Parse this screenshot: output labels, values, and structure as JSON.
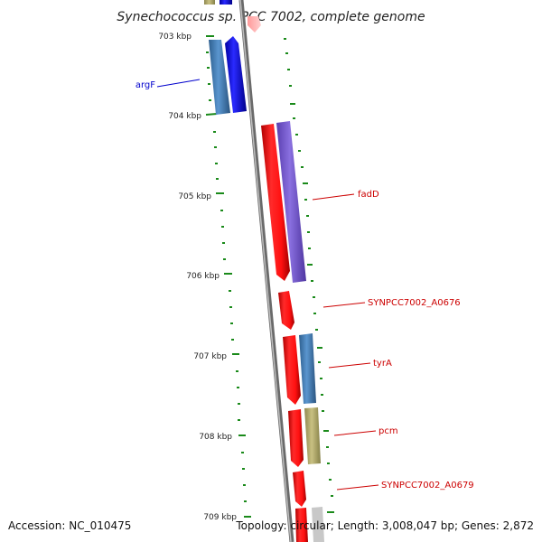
{
  "title": "Synechococcus sp. PCC 7002, complete genome",
  "footer": {
    "accession": "Accession: NC_010475",
    "topology": "Topology: circular; Length: 3,008,047 bp; Genes: 2,872"
  },
  "axis": {
    "unit": "kbp",
    "ticks": [
      {
        "label": "703 kbp",
        "kbp": 703
      },
      {
        "label": "704 kbp",
        "kbp": 704
      },
      {
        "label": "705 kbp",
        "kbp": 705
      },
      {
        "label": "706 kbp",
        "kbp": 706
      },
      {
        "label": "707 kbp",
        "kbp": 707
      },
      {
        "label": "708 kbp",
        "kbp": 708
      },
      {
        "label": "709 kbp",
        "kbp": 709
      }
    ]
  },
  "colors": {
    "cds_red": "#ff1a1a",
    "blue_gene": "#1a1aff",
    "steel_blue_gene": "#4a86c0",
    "purple_gene": "#7b5fd0",
    "khaki_gene": "#b8b070",
    "backbone": "#888888",
    "tick": "#1a8a1a",
    "label_blue": "#0000cc",
    "label_red": "#cc0000"
  },
  "features": [
    {
      "name": "argF",
      "label_color": "#0000cc"
    },
    {
      "name": "fadD",
      "label_color": "#cc0000"
    },
    {
      "name": "SYNPCC7002_A0676",
      "label_color": "#cc0000"
    },
    {
      "name": "tyrA",
      "label_color": "#cc0000"
    },
    {
      "name": "pcm",
      "label_color": "#cc0000"
    },
    {
      "name": "SYNPCC7002_A0679",
      "label_color": "#cc0000"
    }
  ]
}
